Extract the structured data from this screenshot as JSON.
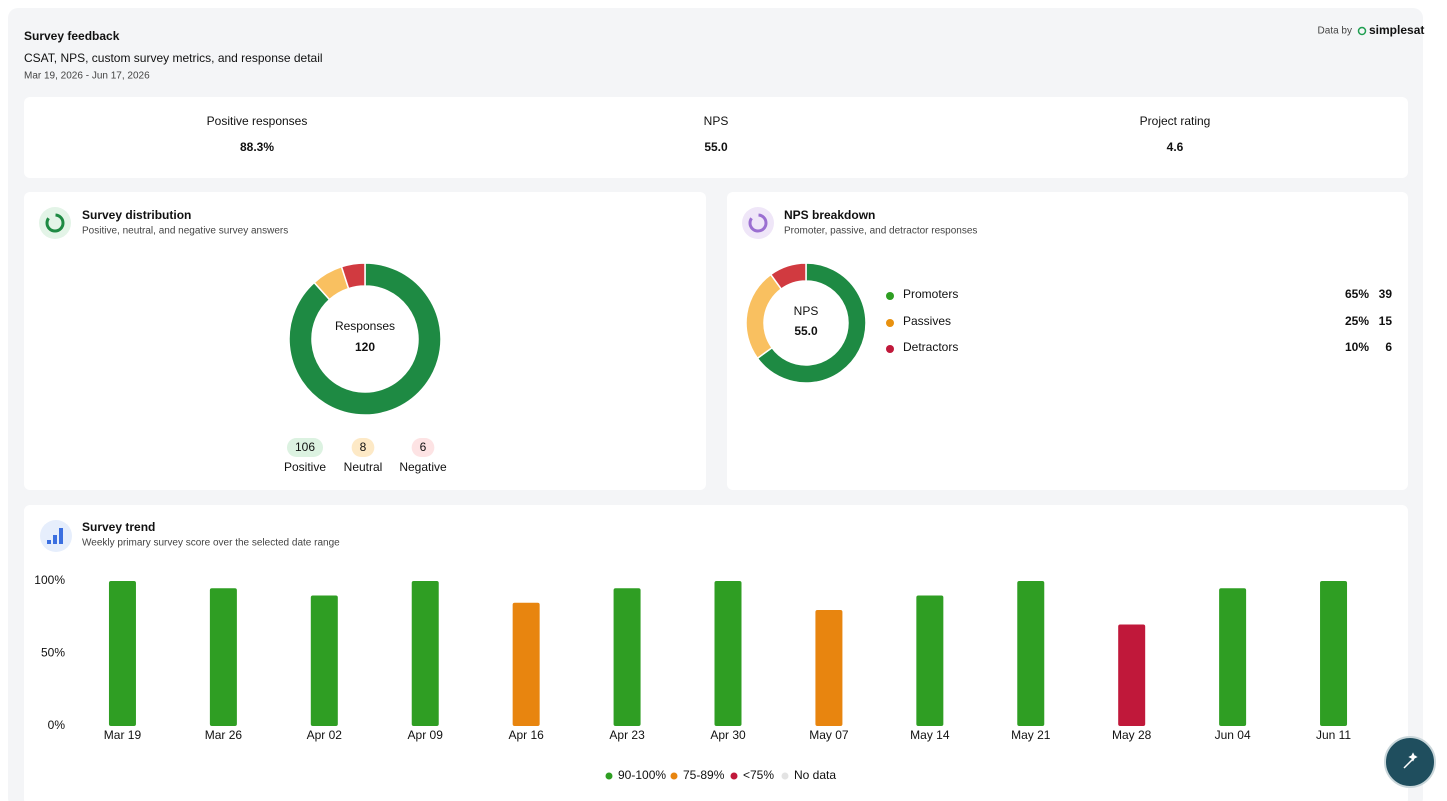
{
  "header": {
    "title": "Survey feedback",
    "subtitle": "CSAT, NPS, custom survey metrics, and response detail",
    "date_range": "Mar 19, 2026 - Jun 17, 2026",
    "data_by": "Data by",
    "brand": "simplesat"
  },
  "kpis": [
    {
      "label": "Positive responses",
      "value": "88.3%"
    },
    {
      "label": "NPS",
      "value": "55.0"
    },
    {
      "label": "Project rating",
      "value": "4.6"
    }
  ],
  "chart_data": [
    {
      "type": "donut",
      "title": "Survey distribution",
      "subtitle": "Positive, neutral, and negative survey answers",
      "center_label": "Responses",
      "center_value": 120,
      "categories": [
        "Positive",
        "Neutral",
        "Negative"
      ],
      "values": [
        106,
        8,
        6
      ],
      "colors": [
        "#1e8a43",
        "#f9c060",
        "#d13a40"
      ],
      "pill_colors": [
        "#dcf2e1",
        "#fde9c6",
        "#fde3e4"
      ]
    },
    {
      "type": "donut",
      "title": "NPS breakdown",
      "subtitle": "Promoter, passive, and detractor responses",
      "center_label": "NPS",
      "center_value": "55.0",
      "categories": [
        "Promoters",
        "Passives",
        "Detractors"
      ],
      "values": [
        39,
        15,
        6
      ],
      "percent_labels": [
        "65%",
        "25%",
        "10%"
      ],
      "colors": [
        "#1e8a43",
        "#f9c060",
        "#d13a40"
      ],
      "legend_colors": [
        "#2e9e22",
        "#e8910f",
        "#c0183a"
      ]
    },
    {
      "type": "bar",
      "title": "Survey trend",
      "subtitle": "Weekly primary survey score over the selected date range",
      "categories": [
        "Mar 19",
        "Mar 26",
        "Apr 02",
        "Apr 09",
        "Apr 16",
        "Apr 23",
        "Apr 30",
        "May 07",
        "May 14",
        "May 21",
        "May 28",
        "Jun 04",
        "Jun 11"
      ],
      "values": [
        100,
        95,
        90,
        100,
        85,
        95,
        100,
        80,
        90,
        100,
        70,
        95,
        100
      ],
      "colors": [
        "#2f9e23",
        "#2f9e23",
        "#2f9e23",
        "#2f9e23",
        "#e8850f",
        "#2f9e23",
        "#2f9e23",
        "#e8850f",
        "#2f9e23",
        "#2f9e23",
        "#c0183a",
        "#2f9e23",
        "#2f9e23"
      ],
      "ylim": [
        0,
        100
      ],
      "yticks": [
        {
          "value": 0,
          "label": "0%"
        },
        {
          "value": 50,
          "label": "50%"
        },
        {
          "value": 100,
          "label": "100%"
        }
      ],
      "legend": [
        {
          "name": "90-100%",
          "color": "#2e9e22"
        },
        {
          "name": "75-89%",
          "color": "#e8850f"
        },
        {
          "name": "<75%",
          "color": "#c0183a"
        },
        {
          "name": "No data",
          "color": "#e3e3e3"
        }
      ]
    }
  ]
}
